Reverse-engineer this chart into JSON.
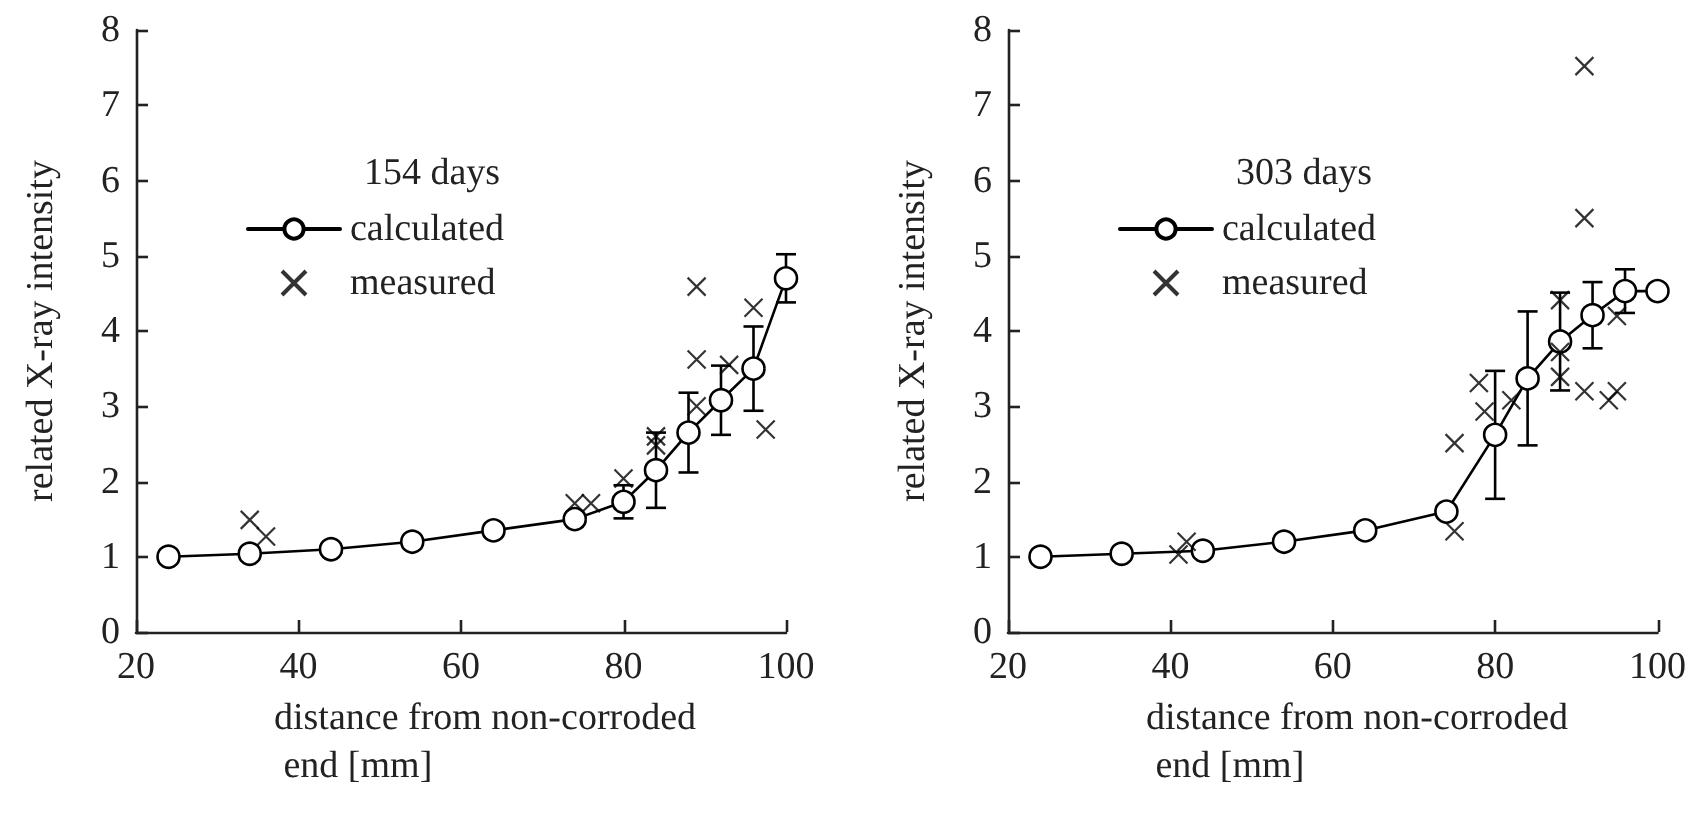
{
  "chart_data": [
    {
      "type": "line",
      "legend_title": "154 days",
      "xlabel": "distance from non-corroded end [mm]",
      "ylabel": "related X-ray intensity",
      "xlim": [
        20,
        100
      ],
      "xticks": [
        20,
        40,
        60,
        80,
        100
      ],
      "ylim": [
        0,
        8
      ],
      "yticks": [
        0,
        1,
        2,
        3,
        4,
        5,
        6,
        7,
        8
      ],
      "grid": false,
      "legend": "top left",
      "series": [
        {
          "name": "calculated",
          "type": "line",
          "marker": "circle",
          "color": "#000000",
          "x": [
            24,
            34,
            44,
            54,
            64,
            74,
            80,
            84,
            88,
            92,
            96,
            100
          ],
          "values": [
            1.0,
            1.04,
            1.1,
            1.2,
            1.35,
            1.5,
            1.73,
            2.15,
            2.65,
            3.08,
            3.5,
            4.7
          ],
          "errors": [
            null,
            null,
            null,
            null,
            null,
            null,
            0.22,
            0.5,
            0.53,
            0.46,
            0.56,
            0.32
          ]
        },
        {
          "name": "measured",
          "type": "scatter",
          "marker": "cross",
          "color": "#000000",
          "x": [
            34,
            36,
            74,
            76,
            80,
            84,
            84,
            89,
            89,
            89,
            93,
            96,
            97.5
          ],
          "values": [
            1.49,
            1.27,
            1.71,
            1.71,
            2.04,
            2.6,
            2.48,
            4.59,
            3.62,
            3.0,
            3.55,
            4.31,
            2.69
          ]
        }
      ]
    },
    {
      "type": "line",
      "legend_title": "303 days",
      "xlabel": "distance from non-corroded end [mm]",
      "ylabel": "related X-ray intensity",
      "xlim": [
        20,
        100
      ],
      "xticks": [
        20,
        40,
        60,
        80,
        100
      ],
      "ylim": [
        0,
        8
      ],
      "yticks": [
        0,
        1,
        2,
        3,
        4,
        5,
        6,
        7,
        8
      ],
      "grid": false,
      "legend": "top left",
      "series": [
        {
          "name": "calculated",
          "type": "line",
          "marker": "circle",
          "color": "#000000",
          "x": [
            24,
            34,
            44,
            54,
            64,
            74,
            80,
            84,
            88,
            92,
            96,
            100
          ],
          "values": [
            1.0,
            1.04,
            1.08,
            1.2,
            1.35,
            1.6,
            2.62,
            3.37,
            3.86,
            4.21,
            4.53,
            4.53
          ],
          "errors": [
            null,
            null,
            null,
            null,
            null,
            null,
            0.85,
            0.89,
            0.65,
            0.44,
            0.29,
            null
          ]
        },
        {
          "name": "measured",
          "type": "scatter",
          "marker": "cross",
          "color": "#000000",
          "x": [
            41,
            42,
            75,
            75,
            78,
            78.7,
            82,
            88,
            88,
            88,
            91,
            91,
            91,
            94,
            95,
            95
          ],
          "values": [
            1.03,
            1.2,
            2.51,
            1.34,
            3.31,
            2.93,
            3.08,
            4.41,
            3.72,
            3.39,
            7.52,
            5.5,
            3.2,
            3.08,
            3.2,
            4.2
          ]
        }
      ]
    }
  ]
}
